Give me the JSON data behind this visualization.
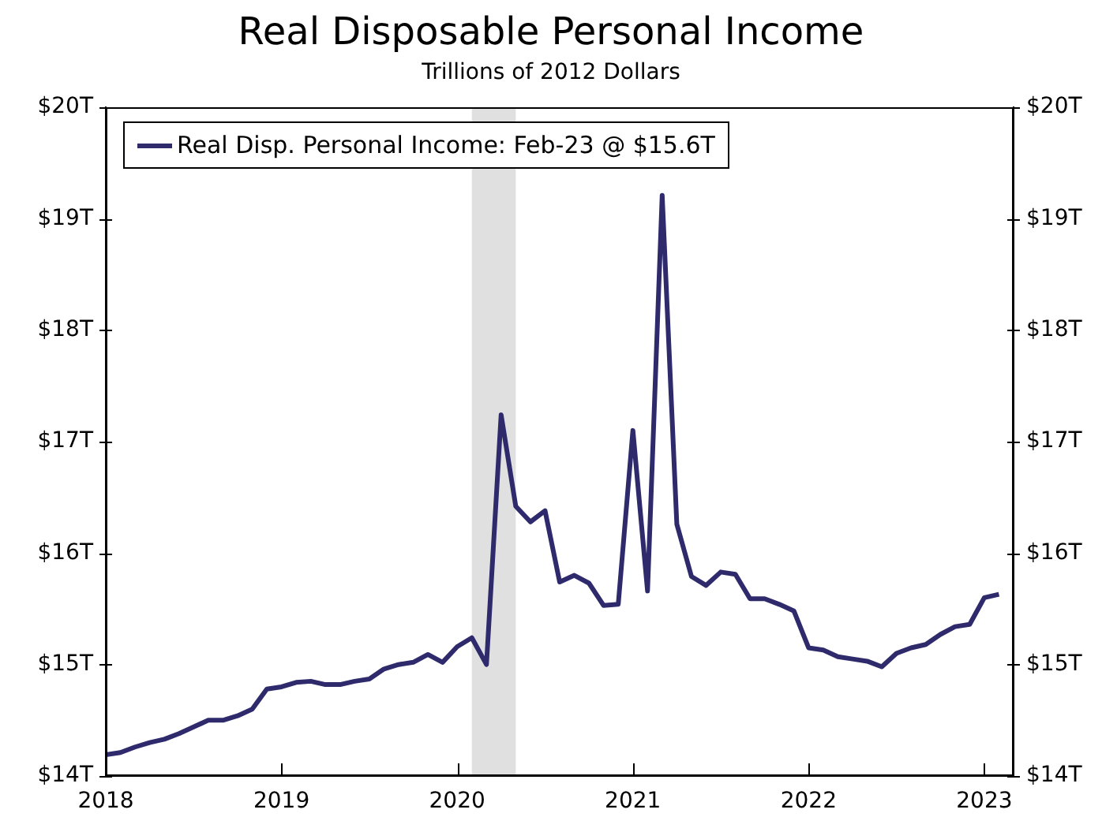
{
  "chart_data": {
    "type": "line",
    "title": "Real Disposable Personal Income",
    "subtitle": "Trillions of 2012 Dollars",
    "x": [
      "2018-01",
      "2018-02",
      "2018-03",
      "2018-04",
      "2018-05",
      "2018-06",
      "2018-07",
      "2018-08",
      "2018-09",
      "2018-10",
      "2018-11",
      "2018-12",
      "2019-01",
      "2019-02",
      "2019-03",
      "2019-04",
      "2019-05",
      "2019-06",
      "2019-07",
      "2019-08",
      "2019-09",
      "2019-10",
      "2019-11",
      "2019-12",
      "2020-01",
      "2020-02",
      "2020-03",
      "2020-04",
      "2020-05",
      "2020-06",
      "2020-07",
      "2020-08",
      "2020-09",
      "2020-10",
      "2020-11",
      "2020-12",
      "2021-01",
      "2021-02",
      "2021-03",
      "2021-04",
      "2021-05",
      "2021-06",
      "2021-07",
      "2021-08",
      "2021-09",
      "2021-10",
      "2021-11",
      "2021-12",
      "2022-01",
      "2022-02",
      "2022-03",
      "2022-04",
      "2022-05",
      "2022-06",
      "2022-07",
      "2022-08",
      "2022-09",
      "2022-10",
      "2022-11",
      "2022-12",
      "2023-01",
      "2023-02"
    ],
    "series": [
      {
        "name": "Real Disp. Personal Income: Feb-23 @ $15.6T",
        "color": "#2e2a6b",
        "values": [
          14.19,
          14.21,
          14.26,
          14.3,
          14.33,
          14.38,
          14.44,
          14.5,
          14.5,
          14.54,
          14.6,
          14.78,
          14.8,
          14.84,
          14.85,
          14.82,
          14.82,
          14.85,
          14.87,
          14.96,
          15.0,
          15.02,
          15.09,
          15.02,
          15.16,
          15.24,
          15.0,
          17.24,
          16.42,
          16.28,
          16.38,
          15.74,
          15.8,
          15.73,
          15.53,
          15.54,
          17.1,
          15.66,
          19.21,
          16.26,
          15.79,
          15.71,
          15.83,
          15.81,
          15.59,
          15.59,
          15.54,
          15.48,
          15.15,
          15.13,
          15.07,
          15.05,
          15.03,
          14.98,
          15.1,
          15.15,
          15.18,
          15.27,
          15.34,
          15.36,
          15.6,
          15.63
        ]
      }
    ],
    "xlim": [
      "2018-01",
      "2023-03"
    ],
    "xticks": [
      "2018",
      "2019",
      "2020",
      "2021",
      "2022",
      "2023"
    ],
    "ylim": [
      14,
      20
    ],
    "yticks": [
      {
        "value": 14,
        "label": "$14T"
      },
      {
        "value": 15,
        "label": "$15T"
      },
      {
        "value": 16,
        "label": "$16T"
      },
      {
        "value": 17,
        "label": "$17T"
      },
      {
        "value": 18,
        "label": "$18T"
      },
      {
        "value": 19,
        "label": "$19T"
      },
      {
        "value": 20,
        "label": "$20T"
      }
    ],
    "y2lim": [
      14,
      20
    ],
    "y2ticks": [
      {
        "value": 14,
        "label": "$14T"
      },
      {
        "value": 15,
        "label": "$15T"
      },
      {
        "value": 16,
        "label": "$16T"
      },
      {
        "value": 17,
        "label": "$17T"
      },
      {
        "value": 18,
        "label": "$18T"
      },
      {
        "value": 19,
        "label": "$19T"
      },
      {
        "value": 20,
        "label": "$20T"
      }
    ],
    "bands": [
      {
        "axis": "x",
        "from": "2020-02",
        "to": "2020-05",
        "color": "#e0e0e0"
      }
    ],
    "grid": false,
    "legend": "top left",
    "marker": "none",
    "line_style": "solid"
  }
}
